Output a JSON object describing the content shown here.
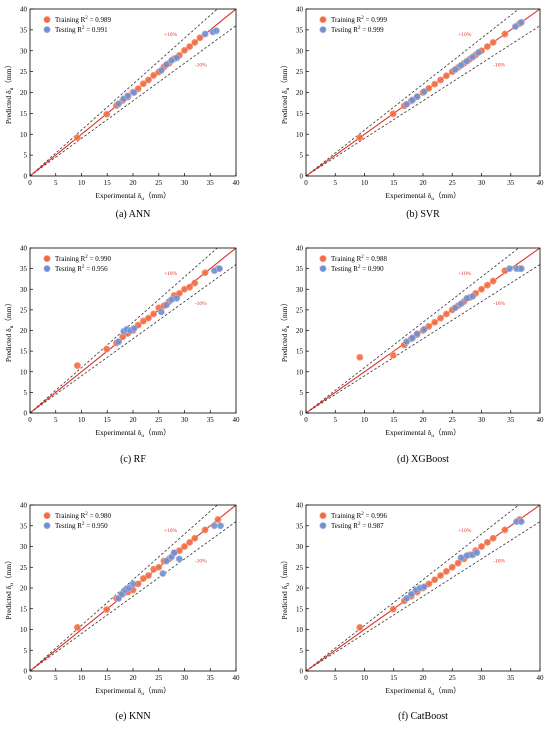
{
  "figure": {
    "colors": {
      "training": "#f26b43",
      "training_edge": "#f5a88c",
      "testing": "#6f8fd0",
      "testing_edge": "#aebfe6",
      "ideal_line": "#e0302a",
      "band": "#333333",
      "band_label": "#e0302a"
    }
  },
  "chart_data": [
    {
      "type": "scatter",
      "caption": "(a) ANN",
      "xlabel": "Experimental δ",
      "ylabel": "Predicted δ",
      "subscript": "u",
      "unit": "（mm）",
      "xlim": [
        0,
        40
      ],
      "ylim": [
        0,
        40
      ],
      "xticks": [
        "0",
        "5",
        "10",
        "15",
        "20",
        "25",
        "30",
        "35",
        "40"
      ],
      "yticks": [
        "0",
        "5",
        "10",
        "15",
        "20",
        "25",
        "30",
        "35",
        "40"
      ],
      "legend": [
        {
          "label": "Training R",
          "sup": "2",
          "value": " = 0.989"
        },
        {
          "label": "Testing  R",
          "sup": "2",
          "value": " = 0.991"
        }
      ],
      "band_labels": {
        "upper": "+10%",
        "lower": "-10%"
      },
      "series": [
        {
          "name": "Training",
          "points": [
            [
              9.2,
              9.2
            ],
            [
              14.9,
              14.8
            ],
            [
              16.8,
              16.9
            ],
            [
              18.0,
              18.1
            ],
            [
              19.0,
              18.9
            ],
            [
              20.0,
              20.1
            ],
            [
              21.0,
              20.9
            ],
            [
              22.0,
              22.1
            ],
            [
              23.0,
              23.0
            ],
            [
              24.0,
              24.1
            ],
            [
              25.0,
              24.9
            ],
            [
              26.0,
              26.1
            ],
            [
              27.0,
              27.0
            ],
            [
              28.0,
              28.1
            ],
            [
              29.0,
              28.9
            ],
            [
              30.0,
              30.1
            ],
            [
              31.0,
              31.0
            ],
            [
              32.0,
              32.0
            ],
            [
              33.0,
              33.1
            ]
          ]
        },
        {
          "name": "Testing",
          "points": [
            [
              17.2,
              17.3
            ],
            [
              18.2,
              18.5
            ],
            [
              19.0,
              19.2
            ],
            [
              20.2,
              20.0
            ],
            [
              25.5,
              25.3
            ],
            [
              26.5,
              26.7
            ],
            [
              27.5,
              27.7
            ],
            [
              28.5,
              28.3
            ],
            [
              34.0,
              34.0
            ],
            [
              35.5,
              34.5
            ],
            [
              36.2,
              34.8
            ]
          ]
        }
      ]
    },
    {
      "type": "scatter",
      "caption": "(b) SVR",
      "xlabel": "Experimental δ",
      "ylabel": "Predicted δ",
      "subscript": "u",
      "unit": "（mm）",
      "xlim": [
        0,
        40
      ],
      "ylim": [
        0,
        40
      ],
      "xticks": [
        "0",
        "5",
        "10",
        "15",
        "20",
        "25",
        "30",
        "35",
        "40"
      ],
      "yticks": [
        "0",
        "5",
        "10",
        "15",
        "20",
        "25",
        "30",
        "35",
        "40"
      ],
      "legend": [
        {
          "label": "Training R",
          "sup": "2",
          "value": " = 0.999"
        },
        {
          "label": "Testing  R",
          "sup": "2",
          "value": " = 0.999"
        }
      ],
      "band_labels": {
        "upper": "+10%",
        "lower": "-10%"
      },
      "series": [
        {
          "name": "Training",
          "points": [
            [
              9.2,
              9.2
            ],
            [
              14.9,
              14.9
            ],
            [
              16.8,
              16.8
            ],
            [
              18.0,
              18.0
            ],
            [
              19.0,
              19.0
            ],
            [
              20.0,
              20.0
            ],
            [
              21.0,
              21.0
            ],
            [
              22.0,
              22.0
            ],
            [
              23.0,
              23.0
            ],
            [
              24.0,
              24.0
            ],
            [
              25.0,
              25.0
            ],
            [
              26.0,
              26.0
            ],
            [
              27.0,
              27.0
            ],
            [
              28.0,
              28.0
            ],
            [
              29.0,
              29.0
            ],
            [
              30.0,
              30.0
            ],
            [
              31.0,
              31.0
            ],
            [
              32.0,
              32.0
            ],
            [
              34.0,
              34.0
            ],
            [
              36.5,
              36.5
            ]
          ]
        },
        {
          "name": "Testing",
          "points": [
            [
              17.2,
              17.2
            ],
            [
              18.2,
              18.2
            ],
            [
              19.0,
              19.0
            ],
            [
              20.2,
              20.2
            ],
            [
              25.5,
              25.5
            ],
            [
              26.5,
              26.5
            ],
            [
              27.5,
              27.5
            ],
            [
              28.5,
              28.5
            ],
            [
              29.5,
              29.6
            ],
            [
              35.8,
              35.8
            ],
            [
              36.8,
              36.8
            ]
          ]
        }
      ]
    },
    {
      "type": "scatter",
      "caption": "(c) RF",
      "xlabel": "Experimental δ",
      "ylabel": "Predicted δ",
      "subscript": "u",
      "unit": "（mm）",
      "xlim": [
        0,
        40
      ],
      "ylim": [
        0,
        40
      ],
      "xticks": [
        "0",
        "5",
        "10",
        "15",
        "20",
        "25",
        "30",
        "35",
        "40"
      ],
      "yticks": [
        "0",
        "5",
        "10",
        "15",
        "20",
        "25",
        "30",
        "35",
        "40"
      ],
      "legend": [
        {
          "label": "Training R",
          "sup": "2",
          "value": " = 0.990"
        },
        {
          "label": "Testing  R",
          "sup": "2",
          "value": " = 0.956"
        }
      ],
      "band_labels": {
        "upper": "+10%",
        "lower": "-10%"
      },
      "series": [
        {
          "name": "Training",
          "points": [
            [
              9.2,
              11.5
            ],
            [
              14.9,
              15.5
            ],
            [
              16.8,
              17.0
            ],
            [
              18.0,
              18.5
            ],
            [
              19.0,
              19.3
            ],
            [
              20.0,
              20.0
            ],
            [
              21.0,
              21.3
            ],
            [
              22.0,
              22.3
            ],
            [
              23.0,
              23.0
            ],
            [
              24.0,
              24.0
            ],
            [
              25.0,
              25.5
            ],
            [
              26.0,
              26.0
            ],
            [
              27.0,
              27.0
            ],
            [
              28.0,
              28.5
            ],
            [
              29.0,
              29.0
            ],
            [
              30.0,
              30.0
            ],
            [
              31.0,
              30.5
            ],
            [
              32.0,
              31.5
            ],
            [
              34.0,
              34.0
            ],
            [
              36.5,
              35.0
            ]
          ]
        },
        {
          "name": "Testing",
          "points": [
            [
              17.2,
              17.3
            ],
            [
              18.2,
              19.8
            ],
            [
              18.8,
              20.3
            ],
            [
              19.5,
              20.0
            ],
            [
              20.2,
              20.5
            ],
            [
              25.5,
              24.5
            ],
            [
              26.5,
              26.2
            ],
            [
              27.5,
              27.5
            ],
            [
              28.5,
              27.8
            ],
            [
              35.8,
              34.5
            ],
            [
              36.8,
              35.0
            ]
          ]
        }
      ]
    },
    {
      "type": "scatter",
      "caption": "(d) XGBoost",
      "xlabel": "Experimental δ",
      "ylabel": "Predicted δ",
      "subscript": "u",
      "unit": "（mm）",
      "xlim": [
        0,
        40
      ],
      "ylim": [
        0,
        40
      ],
      "xticks": [
        "0",
        "5",
        "10",
        "15",
        "20",
        "25",
        "30",
        "35",
        "40"
      ],
      "yticks": [
        "0",
        "5",
        "10",
        "15",
        "20",
        "25",
        "30",
        "35",
        "40"
      ],
      "legend": [
        {
          "label": "Training R",
          "sup": "2",
          "value": " = 0.988"
        },
        {
          "label": "Testing  R",
          "sup": "2",
          "value": " = 0.990"
        }
      ],
      "band_labels": {
        "upper": "+10%",
        "lower": "-10%"
      },
      "series": [
        {
          "name": "Training",
          "points": [
            [
              9.2,
              13.5
            ],
            [
              14.9,
              14.0
            ],
            [
              16.8,
              16.5
            ],
            [
              18.0,
              18.0
            ],
            [
              19.0,
              19.0
            ],
            [
              20.0,
              20.0
            ],
            [
              21.0,
              21.0
            ],
            [
              22.0,
              22.0
            ],
            [
              23.0,
              23.0
            ],
            [
              24.0,
              24.0
            ],
            [
              25.0,
              25.0
            ],
            [
              26.0,
              26.0
            ],
            [
              27.0,
              27.0
            ],
            [
              28.0,
              28.0
            ],
            [
              29.0,
              29.0
            ],
            [
              30.0,
              30.0
            ],
            [
              31.0,
              31.0
            ],
            [
              32.0,
              32.0
            ],
            [
              34.0,
              34.5
            ],
            [
              36.5,
              35.0
            ]
          ]
        },
        {
          "name": "Testing",
          "points": [
            [
              17.2,
              17.3
            ],
            [
              18.2,
              18.2
            ],
            [
              19.0,
              19.2
            ],
            [
              20.2,
              20.3
            ],
            [
              25.5,
              25.5
            ],
            [
              26.5,
              26.5
            ],
            [
              27.5,
              27.8
            ],
            [
              28.5,
              28.3
            ],
            [
              34.8,
              35.0
            ],
            [
              36.0,
              35.0
            ],
            [
              36.8,
              35.0
            ]
          ]
        }
      ]
    },
    {
      "type": "scatter",
      "caption": "(e) KNN",
      "xlabel": "Experimental δ",
      "ylabel": "Predicted δ",
      "subscript": "u",
      "unit": "（mm）",
      "xlim": [
        0,
        40
      ],
      "ylim": [
        0,
        40
      ],
      "xticks": [
        "0",
        "5",
        "10",
        "15",
        "20",
        "25",
        "30",
        "35",
        "40"
      ],
      "yticks": [
        "0",
        "5",
        "10",
        "15",
        "20",
        "25",
        "30",
        "35",
        "40"
      ],
      "legend": [
        {
          "label": "Training R",
          "sup": "2",
          "value": " = 0.980"
        },
        {
          "label": "Testing  R",
          "sup": "2",
          "value": " = 0.950"
        }
      ],
      "band_labels": {
        "upper": "+10%",
        "lower": "-10%"
      },
      "series": [
        {
          "name": "Training",
          "points": [
            [
              9.2,
              10.5
            ],
            [
              14.9,
              14.8
            ],
            [
              16.8,
              17.5
            ],
            [
              18.0,
              18.5
            ],
            [
              19.0,
              19.0
            ],
            [
              20.0,
              19.5
            ],
            [
              21.0,
              21.0
            ],
            [
              22.0,
              22.3
            ],
            [
              23.0,
              23.0
            ],
            [
              24.0,
              24.5
            ],
            [
              25.0,
              25.0
            ],
            [
              26.0,
              26.5
            ],
            [
              27.0,
              27.0
            ],
            [
              28.0,
              28.5
            ],
            [
              29.0,
              29.0
            ],
            [
              30.0,
              30.0
            ],
            [
              31.0,
              31.0
            ],
            [
              32.0,
              32.0
            ],
            [
              34.0,
              34.0
            ],
            [
              36.5,
              36.5
            ]
          ]
        },
        {
          "name": "Testing",
          "points": [
            [
              17.2,
              17.5
            ],
            [
              17.8,
              18.5
            ],
            [
              18.5,
              19.5
            ],
            [
              19.2,
              20.0
            ],
            [
              20.0,
              21.0
            ],
            [
              25.8,
              23.5
            ],
            [
              26.5,
              26.5
            ],
            [
              27.5,
              27.5
            ],
            [
              28.0,
              28.5
            ],
            [
              29.0,
              27.0
            ],
            [
              35.8,
              35.0
            ],
            [
              37.0,
              35.0
            ]
          ]
        }
      ]
    },
    {
      "type": "scatter",
      "caption": "(f) CatBoost",
      "xlabel": "Experimental δ",
      "ylabel": "Predicted δ",
      "subscript": "u",
      "unit": "（mm）",
      "xlim": [
        0,
        40
      ],
      "ylim": [
        0,
        40
      ],
      "xticks": [
        "0",
        "5",
        "10",
        "15",
        "20",
        "25",
        "30",
        "35",
        "40"
      ],
      "yticks": [
        "0",
        "5",
        "10",
        "15",
        "20",
        "25",
        "30",
        "35",
        "40"
      ],
      "legend": [
        {
          "label": "Training R",
          "sup": "2",
          "value": " = 0.996"
        },
        {
          "label": "Testing  R",
          "sup": "2",
          "value": " = 0.987"
        }
      ],
      "band_labels": {
        "upper": "+10%",
        "lower": "-10%"
      },
      "series": [
        {
          "name": "Training",
          "points": [
            [
              9.2,
              10.5
            ],
            [
              14.9,
              14.9
            ],
            [
              16.8,
              16.9
            ],
            [
              18.0,
              18.0
            ],
            [
              19.0,
              19.0
            ],
            [
              20.0,
              20.0
            ],
            [
              21.0,
              21.0
            ],
            [
              22.0,
              22.0
            ],
            [
              23.0,
              23.0
            ],
            [
              24.0,
              24.0
            ],
            [
              25.0,
              25.0
            ],
            [
              26.0,
              26.0
            ],
            [
              27.0,
              27.0
            ],
            [
              28.0,
              28.0
            ],
            [
              29.0,
              29.0
            ],
            [
              30.0,
              30.0
            ],
            [
              31.0,
              31.0
            ],
            [
              32.0,
              32.0
            ],
            [
              34.0,
              34.0
            ],
            [
              36.5,
              36.5
            ]
          ]
        },
        {
          "name": "Testing",
          "points": [
            [
              17.2,
              17.5
            ],
            [
              18.0,
              18.5
            ],
            [
              18.8,
              19.5
            ],
            [
              19.5,
              20.0
            ],
            [
              20.2,
              20.3
            ],
            [
              26.5,
              27.3
            ],
            [
              27.5,
              27.8
            ],
            [
              28.5,
              28.0
            ],
            [
              29.2,
              28.5
            ],
            [
              36.0,
              36.0
            ],
            [
              36.8,
              36.0
            ]
          ]
        }
      ]
    }
  ]
}
